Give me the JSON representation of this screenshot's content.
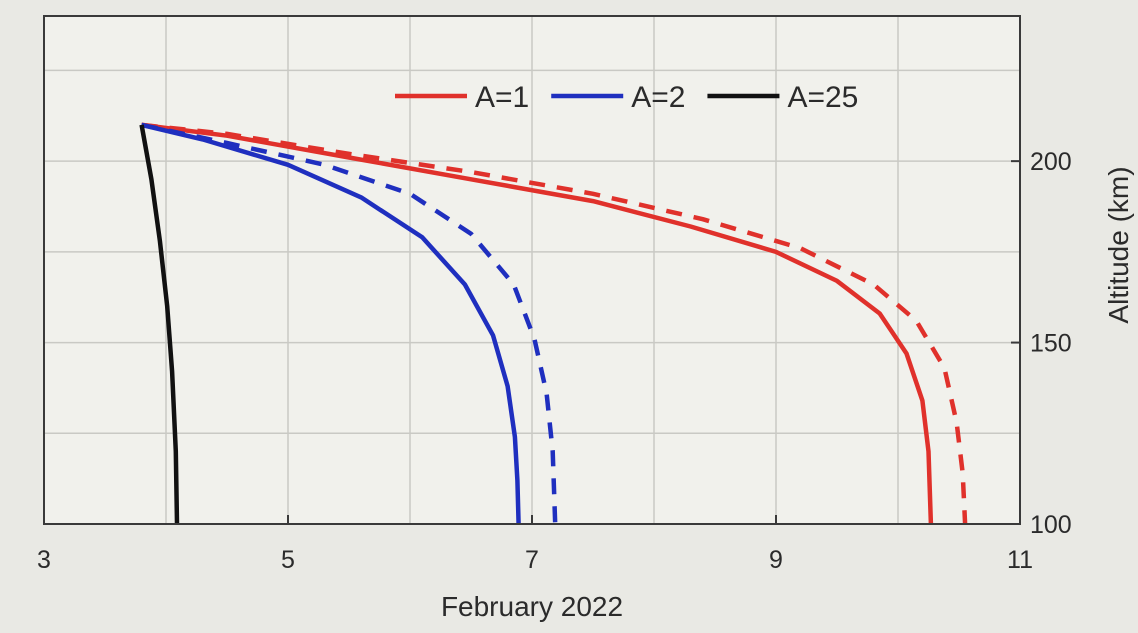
{
  "chart_data": {
    "type": "line",
    "title": "",
    "xlabel": "February 2022",
    "ylabel": "Altitude (km)",
    "xlim": [
      3,
      11
    ],
    "ylim": [
      100,
      240
    ],
    "x_ticks": [
      3,
      5,
      7,
      9,
      11
    ],
    "x_minor_grid": [
      4,
      6,
      8,
      10
    ],
    "y_ticks": [
      100,
      150,
      200
    ],
    "y_axis_side": "right",
    "grid": true,
    "legend_position": "top-center",
    "series": [
      {
        "name": "A=1",
        "color": "#e0312b",
        "style": "solid",
        "in_legend": true,
        "points": [
          [
            3.8,
            210
          ],
          [
            4.5,
            207
          ],
          [
            5.5,
            201
          ],
          [
            6.5,
            195
          ],
          [
            7.5,
            189
          ],
          [
            8.3,
            182
          ],
          [
            9.0,
            175
          ],
          [
            9.5,
            167
          ],
          [
            9.85,
            158
          ],
          [
            10.07,
            147
          ],
          [
            10.2,
            134
          ],
          [
            10.25,
            120
          ],
          [
            10.27,
            100
          ]
        ]
      },
      {
        "name": "",
        "color": "#e0312b",
        "style": "dashed",
        "in_legend": false,
        "points": [
          [
            3.8,
            210
          ],
          [
            4.5,
            207.5
          ],
          [
            5.5,
            202
          ],
          [
            6.5,
            197
          ],
          [
            7.5,
            191
          ],
          [
            8.4,
            184
          ],
          [
            9.2,
            176
          ],
          [
            9.8,
            166
          ],
          [
            10.15,
            156
          ],
          [
            10.38,
            143
          ],
          [
            10.48,
            128
          ],
          [
            10.53,
            114
          ],
          [
            10.55,
            100
          ]
        ]
      },
      {
        "name": "A=2",
        "color": "#1f2fbf",
        "style": "solid",
        "in_legend": true,
        "points": [
          [
            3.8,
            210
          ],
          [
            4.3,
            206
          ],
          [
            5.0,
            199
          ],
          [
            5.6,
            190
          ],
          [
            6.1,
            179
          ],
          [
            6.45,
            166
          ],
          [
            6.68,
            152
          ],
          [
            6.8,
            138
          ],
          [
            6.86,
            124
          ],
          [
            6.88,
            112
          ],
          [
            6.89,
            100
          ]
        ]
      },
      {
        "name": "",
        "color": "#1f2fbf",
        "style": "dashed",
        "in_legend": false,
        "points": [
          [
            3.8,
            210
          ],
          [
            4.5,
            205
          ],
          [
            5.3,
            199
          ],
          [
            6.0,
            191
          ],
          [
            6.5,
            180
          ],
          [
            6.85,
            166
          ],
          [
            7.02,
            151
          ],
          [
            7.12,
            136
          ],
          [
            7.17,
            120
          ],
          [
            7.19,
            100
          ]
        ]
      },
      {
        "name": "A=25",
        "color": "#111111",
        "style": "solid",
        "in_legend": true,
        "points": [
          [
            3.8,
            210
          ],
          [
            3.88,
            195
          ],
          [
            3.95,
            178
          ],
          [
            4.01,
            160
          ],
          [
            4.05,
            142
          ],
          [
            4.08,
            120
          ],
          [
            4.09,
            100
          ]
        ]
      }
    ]
  }
}
